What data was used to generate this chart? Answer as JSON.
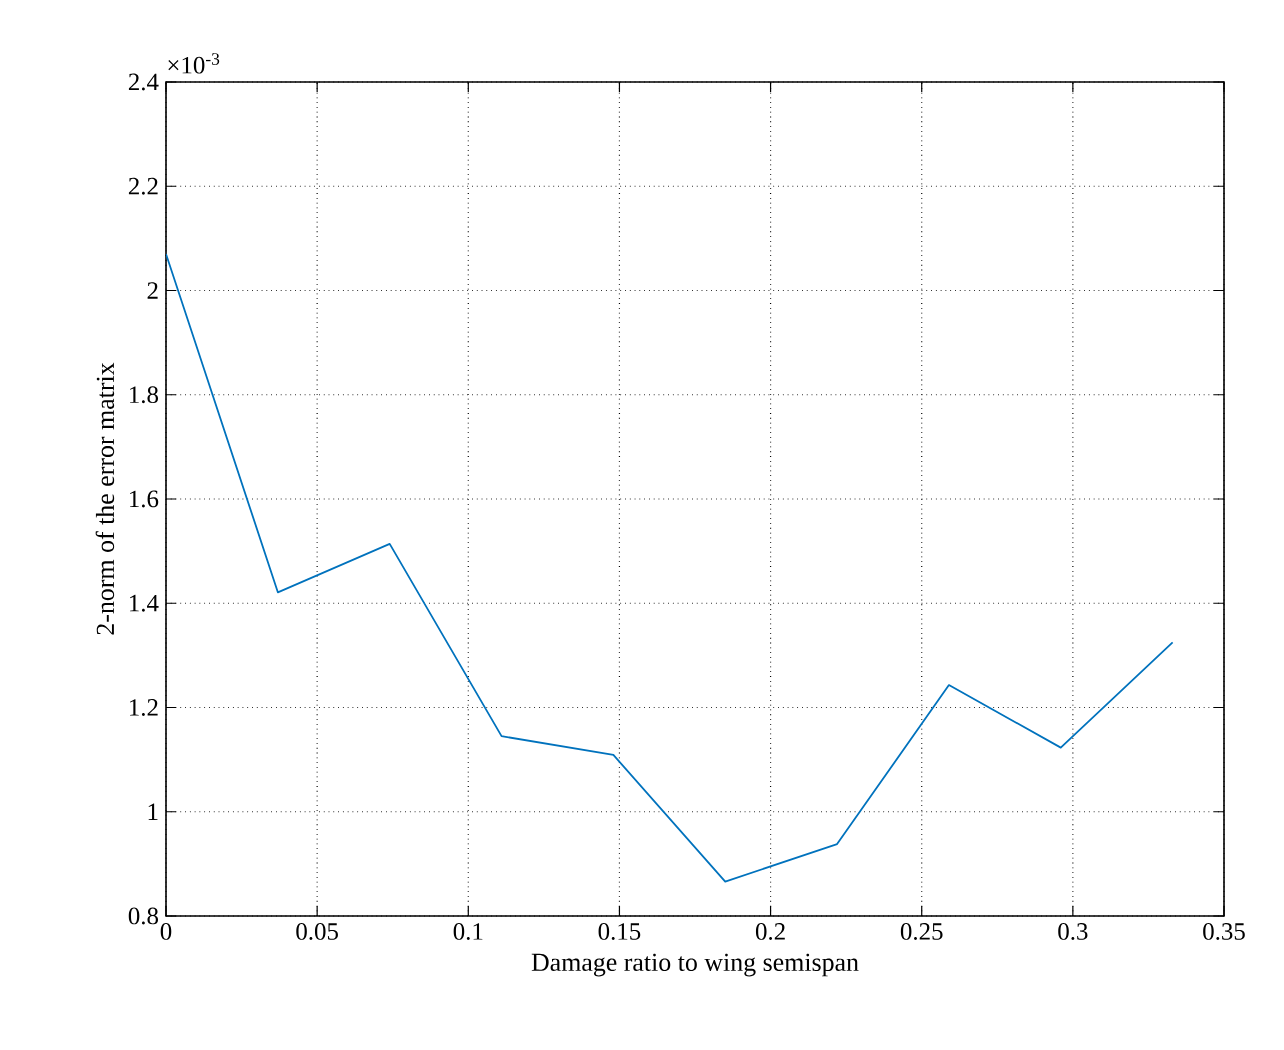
{
  "chart_data": {
    "type": "line",
    "xlabel": "Damage ratio to wing semispan",
    "ylabel": "2-norm of the error matrix",
    "annotations": [
      "×10$^{-3}$"
    ],
    "x": [
      0,
      0.037,
      0.074,
      0.111,
      0.148,
      0.185,
      0.222,
      0.259,
      0.296,
      0.333
    ],
    "series": [
      {
        "color": "#0072bd",
        "values": [
          2.07,
          1.421,
          1.514,
          1.145,
          1.109,
          0.866,
          0.938,
          1.243,
          1.123,
          1.325
        ]
      }
    ],
    "xlim": [
      0,
      0.35
    ],
    "xticks": [
      0,
      0.05,
      0.1,
      0.15,
      0.2,
      0.25,
      0.3,
      0.35
    ],
    "ylim": [
      0.8,
      2.4
    ],
    "yticks": [
      0.8,
      1,
      1.2,
      1.4,
      1.6,
      1.8,
      2,
      2.2,
      2.4
    ],
    "grid": true,
    "marker": "none",
    "line_style": "solid"
  }
}
